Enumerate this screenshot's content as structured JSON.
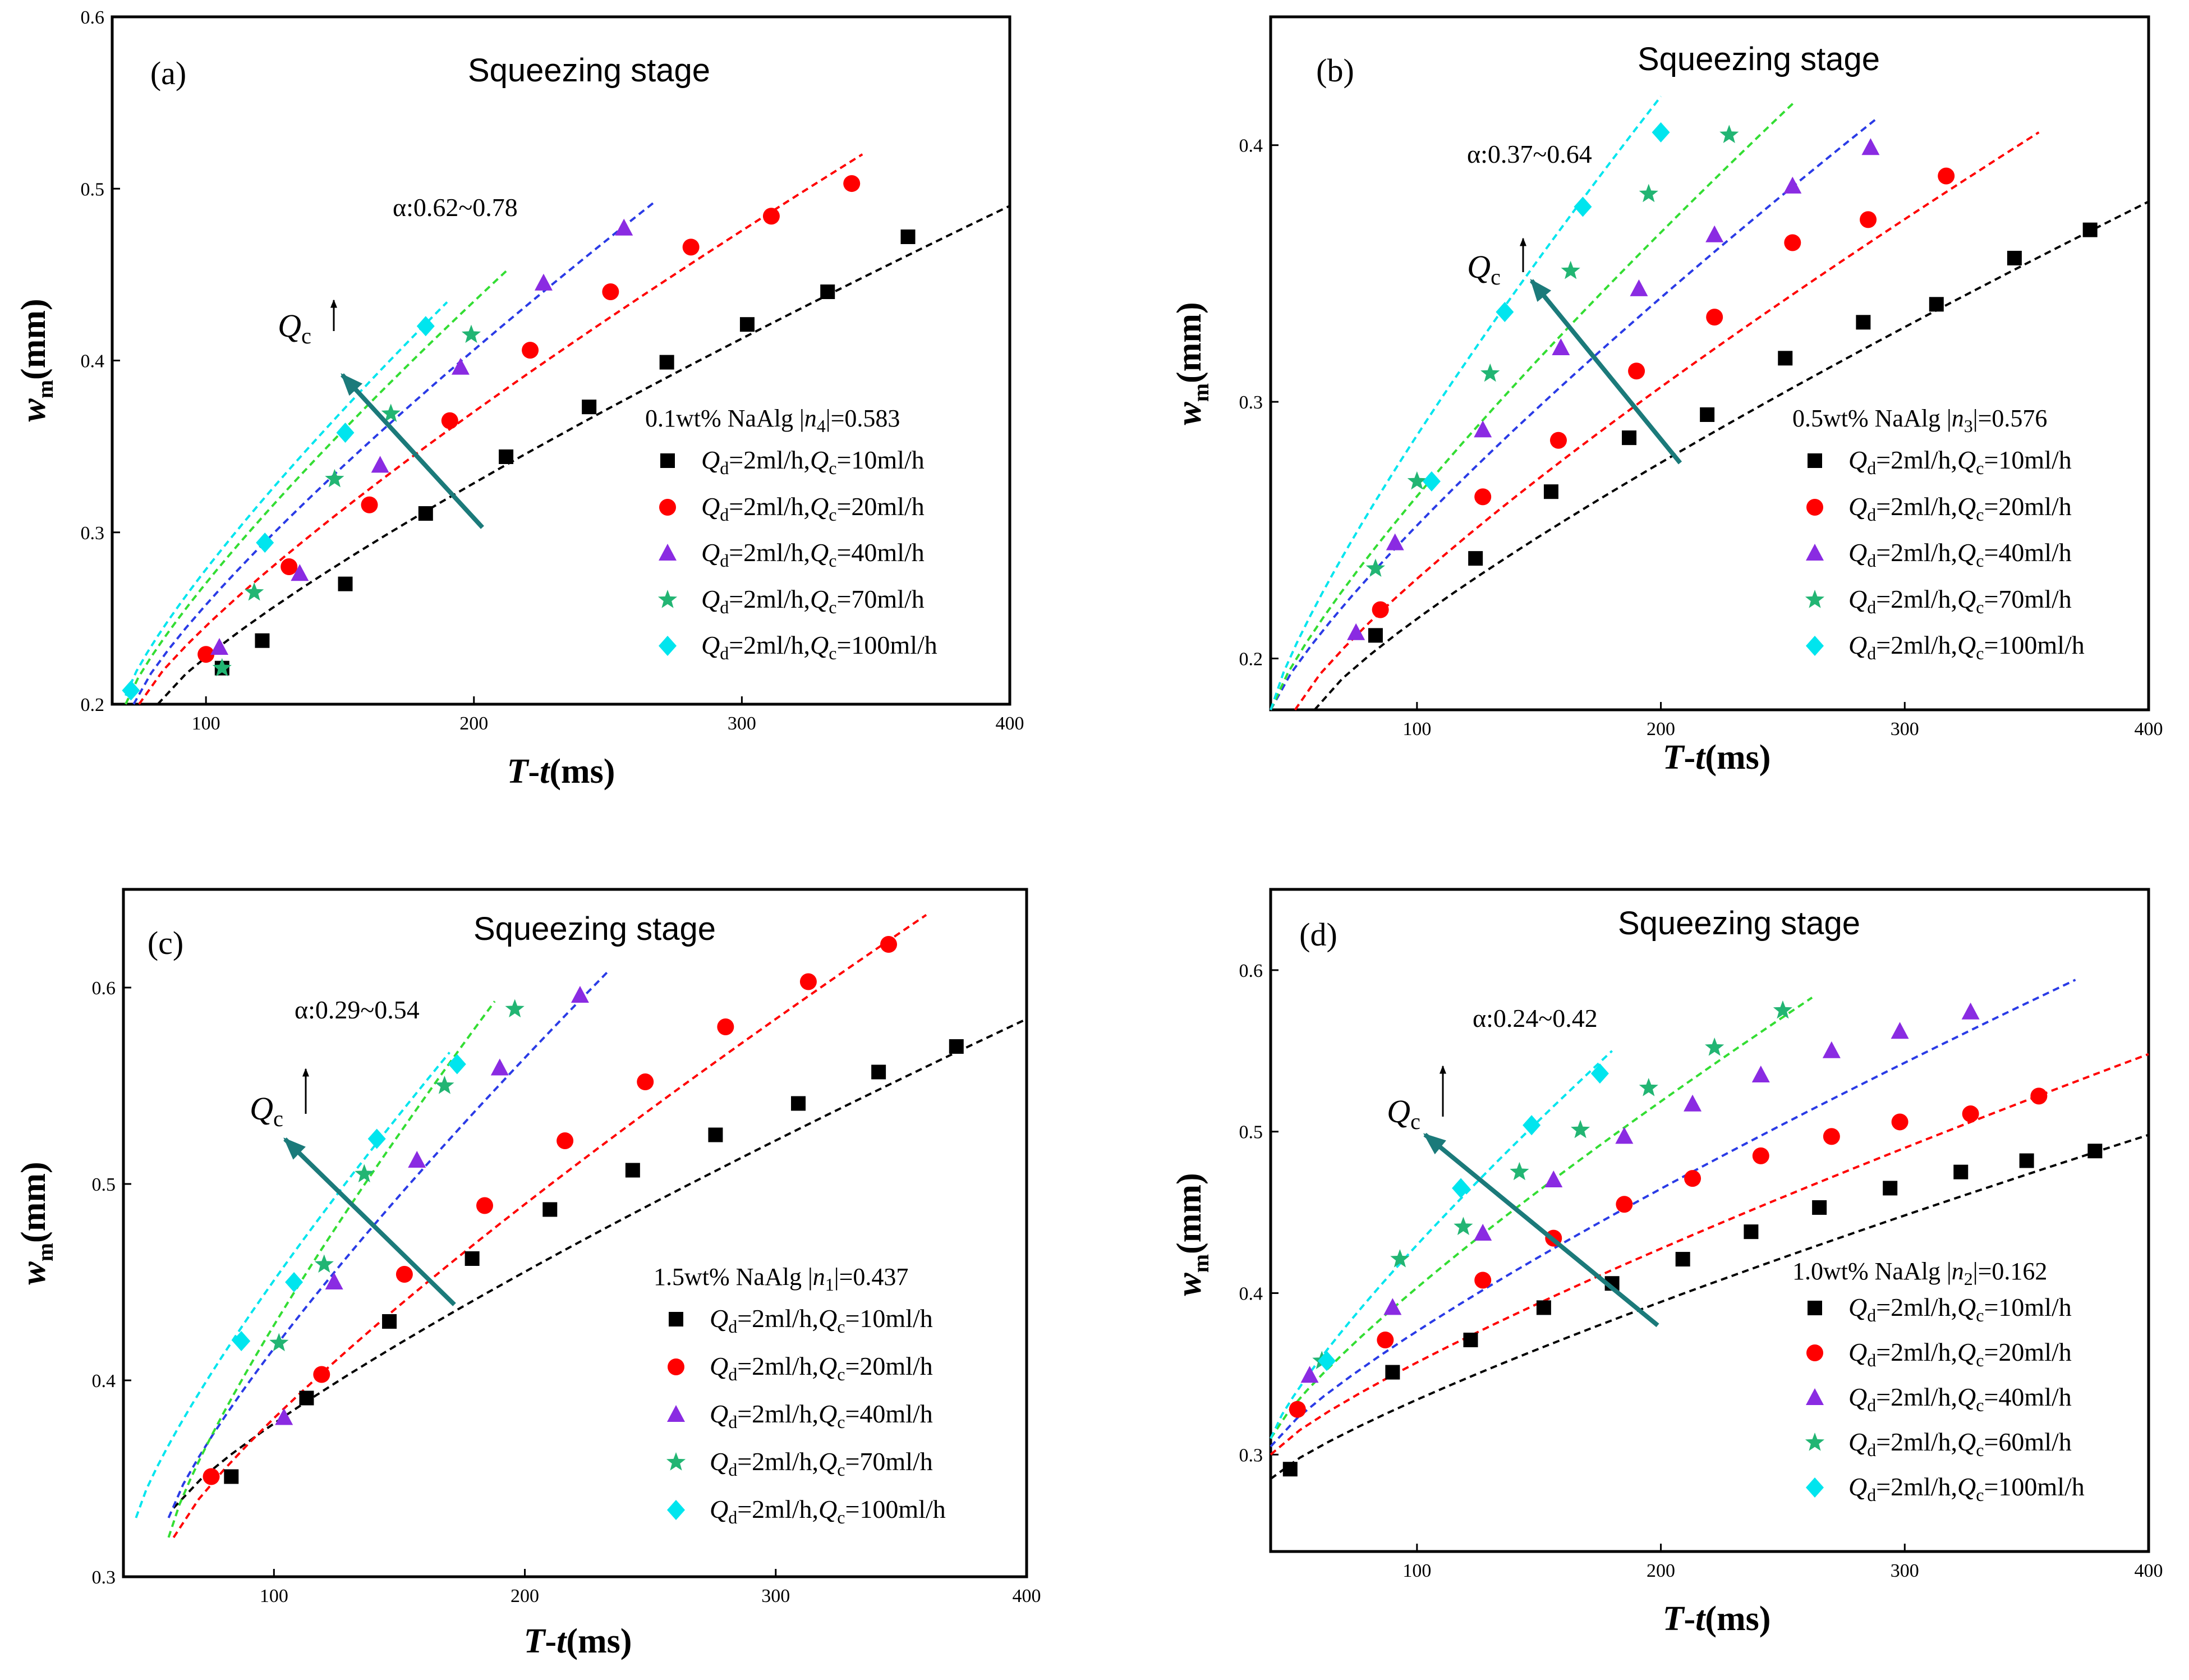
{
  "chart_data": [
    {
      "type": "scatter",
      "panel": "(a)",
      "title": "Squeezing stage",
      "xlabel": "T-t(ms)",
      "ylabel": "w_m(mm)",
      "xlim": [
        65,
        400
      ],
      "ylim": [
        0.2,
        0.6
      ],
      "xticks": [
        100,
        200,
        300,
        400
      ],
      "yticks": [
        0.2,
        0.3,
        0.4,
        0.5,
        0.6
      ],
      "alpha_note": "α:0.62~0.78",
      "legend_title": "0.1wt% NaAlg |n4|=0.583",
      "legend_placement": "right",
      "arrow_label": "Qc",
      "series": [
        {
          "name": "Qd=2ml/h,Qc=10ml/h",
          "marker": "square",
          "color": "#000000",
          "x": [
            106,
            121,
            152,
            182,
            212,
            243,
            272,
            302,
            332,
            362
          ],
          "y": [
            0.221,
            0.237,
            0.27,
            0.311,
            0.344,
            0.373,
            0.399,
            0.421,
            0.44,
            0.472
          ],
          "fit": {
            "x0": 82,
            "y0": 0.2,
            "x1": 400,
            "y1": 0.49
          }
        },
        {
          "name": "Qd=2ml/h,Qc=20ml/h",
          "marker": "circle",
          "color": "#ff0000",
          "x": [
            100,
            131,
            161,
            191,
            221,
            251,
            281,
            311,
            341
          ],
          "y": [
            0.229,
            0.28,
            0.316,
            0.365,
            0.406,
            0.44,
            0.466,
            0.484,
            0.503
          ],
          "fit": {
            "x0": 75,
            "y0": 0.2,
            "x1": 345,
            "y1": 0.52
          }
        },
        {
          "name": "Qd=2ml/h,Qc=40ml/h",
          "marker": "triangle",
          "color": "#8a2be2",
          "x": [
            105,
            135,
            165,
            195,
            226,
            256
          ],
          "y": [
            0.233,
            0.276,
            0.339,
            0.396,
            0.445,
            0.477
          ],
          "fit": {
            "x0": 73,
            "y0": 0.2,
            "x1": 268,
            "y1": 0.493
          }
        },
        {
          "name": "Qd=2ml/h,Qc=70ml/h",
          "marker": "star",
          "color": "#22b573",
          "x": [
            106,
            118,
            148,
            169,
            199
          ],
          "y": [
            0.221,
            0.265,
            0.331,
            0.369,
            0.415
          ],
          "fit": {
            "x0": 70,
            "y0": 0.2,
            "x1": 212,
            "y1": 0.452
          }
        },
        {
          "name": "Qd=2ml/h,Qc=100ml/h",
          "marker": "diamond",
          "color": "#00e5ee",
          "x": [
            72,
            122,
            152,
            182
          ],
          "y": [
            0.208,
            0.294,
            0.358,
            0.42
          ],
          "fit": {
            "x0": 70,
            "y0": 0.205,
            "x1": 190,
            "y1": 0.434
          }
        }
      ]
    },
    {
      "type": "scatter",
      "panel": "(b)",
      "title": "Squeezing stage",
      "xlabel": "T-t(ms)",
      "ylabel": "w_m(mm)",
      "xlim": [
        40,
        400
      ],
      "ylim": [
        0.18,
        0.45
      ],
      "xticks": [
        100,
        200,
        300,
        400
      ],
      "yticks": [
        0.2,
        0.3,
        0.4
      ],
      "alpha_note": "α:0.37~0.64",
      "legend_title": "0.5wt% NaAlg |n3|=0.576",
      "legend_placement": "right",
      "arrow_label": "Qc",
      "series": [
        {
          "name": "Qd=2ml/h,Qc=10ml/h",
          "marker": "square",
          "color": "#000000",
          "x": [
            83,
            124,
            155,
            187,
            219,
            251,
            283,
            313,
            345,
            376
          ],
          "y": [
            0.209,
            0.239,
            0.265,
            0.286,
            0.295,
            0.317,
            0.331,
            0.338,
            0.356,
            0.367
          ],
          "fit": {
            "x0": 58,
            "y0": 0.18,
            "x1": 400,
            "y1": 0.378
          }
        },
        {
          "name": "Qd=2ml/h,Qc=20ml/h",
          "marker": "circle",
          "color": "#ff0000",
          "x": [
            85,
            127,
            158,
            190,
            222,
            254,
            285,
            317
          ],
          "y": [
            0.219,
            0.263,
            0.285,
            0.312,
            0.333,
            0.362,
            0.371,
            0.388
          ],
          "fit": {
            "x0": 50,
            "y0": 0.18,
            "x1": 355,
            "y1": 0.405
          }
        },
        {
          "name": "Qd=2ml/h,Qc=40ml/h",
          "marker": "triangle",
          "color": "#8a2be2",
          "x": [
            75,
            91,
            127,
            159,
            191,
            222,
            254,
            286
          ],
          "y": [
            0.21,
            0.245,
            0.289,
            0.321,
            0.344,
            0.365,
            0.384,
            0.399
          ],
          "fit": {
            "x0": 40,
            "y0": 0.18,
            "x1": 288,
            "y1": 0.41
          }
        },
        {
          "name": "Qd=2ml/h,Qc=70ml/h",
          "marker": "star",
          "color": "#22b573",
          "x": [
            83,
            100,
            130,
            163,
            195,
            228
          ],
          "y": [
            0.235,
            0.269,
            0.311,
            0.351,
            0.381,
            0.404
          ],
          "fit": {
            "x0": 40,
            "y0": 0.18,
            "x1": 255,
            "y1": 0.417
          }
        },
        {
          "name": "Qd=2ml/h,Qc=100ml/h",
          "marker": "diamond",
          "color": "#00e5ee",
          "x": [
            106,
            136,
            168,
            200
          ],
          "y": [
            0.269,
            0.335,
            0.376,
            0.405
          ],
          "fit": {
            "x0": 40,
            "y0": 0.18,
            "x1": 200,
            "y1": 0.419
          }
        }
      ]
    },
    {
      "type": "scatter",
      "panel": "(c)",
      "title": "Squeezing stage",
      "xlabel": "T-t(ms)",
      "ylabel": "w_m(mm)",
      "xlim": [
        40,
        400
      ],
      "ylim": [
        0.3,
        0.65
      ],
      "xticks": [
        100,
        200,
        300,
        400
      ],
      "yticks": [
        0.3,
        0.4,
        0.5,
        0.6
      ],
      "alpha_note": "α:0.29~0.54",
      "legend_title": "1.5wt% NaAlg |n1|=0.437",
      "legend_placement": "right",
      "arrow_label": "Qc",
      "series": [
        {
          "name": "Qd=2ml/h,Qc=10ml/h",
          "marker": "square",
          "color": "#000000",
          "x": [
            83,
            113,
            146,
            179,
            210,
            243,
            276,
            309,
            341,
            372
          ],
          "y": [
            0.351,
            0.391,
            0.43,
            0.462,
            0.487,
            0.507,
            0.525,
            0.541,
            0.557,
            0.57
          ],
          "fit": {
            "x0": 60,
            "y0": 0.335,
            "x1": 400,
            "y1": 0.584
          }
        },
        {
          "name": "Qd=2ml/h,Qc=20ml/h",
          "marker": "circle",
          "color": "#ff0000",
          "x": [
            75,
            119,
            152,
            184,
            216,
            248,
            280,
            313,
            345
          ],
          "y": [
            0.351,
            0.403,
            0.454,
            0.489,
            0.522,
            0.552,
            0.58,
            0.603,
            0.622
          ],
          "fit": {
            "x0": 60,
            "y0": 0.32,
            "x1": 360,
            "y1": 0.637
          }
        },
        {
          "name": "Qd=2ml/h,Qc=40ml/h",
          "marker": "triangle",
          "color": "#8a2be2",
          "x": [
            104,
            124,
            157,
            190,
            222
          ],
          "y": [
            0.381,
            0.45,
            0.512,
            0.559,
            0.596
          ],
          "fit": {
            "x0": 58,
            "y0": 0.33,
            "x1": 233,
            "y1": 0.608
          }
        },
        {
          "name": "Qd=2ml/h,Qc=70ml/h",
          "marker": "star",
          "color": "#22b573",
          "x": [
            102,
            120,
            136,
            168,
            196
          ],
          "y": [
            0.419,
            0.459,
            0.505,
            0.55,
            0.589
          ],
          "fit": {
            "x0": 58,
            "y0": 0.32,
            "x1": 188,
            "y1": 0.593
          }
        },
        {
          "name": "Qd=2ml/h,Qc=100ml/h",
          "marker": "diamond",
          "color": "#00e5ee",
          "x": [
            87,
            108,
            141,
            173
          ],
          "y": [
            0.42,
            0.45,
            0.523,
            0.561
          ],
          "fit": {
            "x0": 45,
            "y0": 0.33,
            "x1": 170,
            "y1": 0.567
          }
        }
      ]
    },
    {
      "type": "scatter",
      "panel": "(d)",
      "title": "Squeezing stage",
      "xlabel": "T-t(ms)",
      "ylabel": "w_m(mm)",
      "xlim": [
        40,
        400
      ],
      "ylim": [
        0.24,
        0.65
      ],
      "xticks": [
        100,
        200,
        300,
        400
      ],
      "yticks": [
        0.3,
        0.4,
        0.5,
        0.6
      ],
      "alpha_note": "α:0.24~0.42",
      "legend_title": "1.0wt% NaAlg |n2|=0.162",
      "legend_placement": "right",
      "arrow_label": "Qc",
      "series": [
        {
          "name": "Qd=2ml/h,Qc=10ml/h",
          "marker": "square",
          "color": "#000000",
          "x": [
            48,
            90,
            122,
            152,
            180,
            209,
            237,
            265,
            294,
            323,
            350,
            378
          ],
          "y": [
            0.291,
            0.351,
            0.371,
            0.391,
            0.406,
            0.421,
            0.438,
            0.453,
            0.465,
            0.475,
            0.482,
            0.488
          ],
          "fit": {
            "x0": 40,
            "y0": 0.285,
            "x1": 400,
            "y1": 0.498
          }
        },
        {
          "name": "Qd=2ml/h,Qc=20ml/h",
          "marker": "circle",
          "color": "#ff0000",
          "x": [
            51,
            87,
            127,
            156,
            185,
            213,
            241,
            270,
            298,
            327,
            355
          ],
          "y": [
            0.328,
            0.371,
            0.408,
            0.434,
            0.455,
            0.471,
            0.485,
            0.497,
            0.506,
            0.511,
            0.522
          ],
          "fit": {
            "x0": 40,
            "y0": 0.3,
            "x1": 400,
            "y1": 0.548
          }
        },
        {
          "name": "Qd=2ml/h,Qc=40ml/h",
          "marker": "triangle",
          "color": "#8a2be2",
          "x": [
            56,
            90,
            127,
            156,
            185,
            213,
            241,
            270,
            298,
            327
          ],
          "y": [
            0.349,
            0.391,
            0.437,
            0.47,
            0.497,
            0.517,
            0.535,
            0.55,
            0.562,
            0.574
          ],
          "fit": {
            "x0": 40,
            "y0": 0.305,
            "x1": 370,
            "y1": 0.594
          }
        },
        {
          "name": "Qd=2ml/h,Qc=60ml/h",
          "marker": "star",
          "color": "#22b573",
          "x": [
            61,
            93,
            119,
            142,
            167,
            195,
            222,
            250
          ],
          "y": [
            0.358,
            0.421,
            0.441,
            0.475,
            0.501,
            0.527,
            0.552,
            0.575
          ],
          "fit": {
            "x0": 40,
            "y0": 0.31,
            "x1": 262,
            "y1": 0.583
          }
        },
        {
          "name": "Qd=2ml/h,Qc=100ml/h",
          "marker": "diamond",
          "color": "#00e5ee",
          "x": [
            63,
            118,
            147,
            175
          ],
          "y": [
            0.358,
            0.465,
            0.504,
            0.536
          ],
          "fit": {
            "x0": 40,
            "y0": 0.31,
            "x1": 180,
            "y1": 0.55
          }
        }
      ]
    }
  ]
}
